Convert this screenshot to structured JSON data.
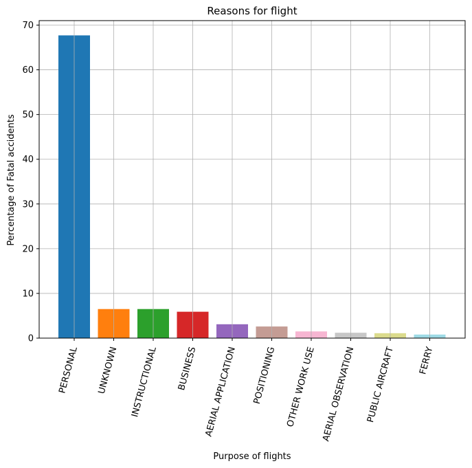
{
  "chart_data": {
    "type": "bar",
    "title": "Reasons for flight",
    "xlabel": "Purpose of flights",
    "ylabel": "Percentage of Fatal accidents",
    "categories": [
      "PERSONAL",
      "UNKNOWN",
      "INSTRUCTIONAL",
      "BUSINESS",
      "AERIAL APPLICATION",
      "POSITIONING",
      "OTHER WORK USE",
      "AERIAL OBSERVATION",
      "PUBLIC AIRCRAFT",
      "FERRY"
    ],
    "values": [
      67.7,
      6.5,
      6.5,
      5.9,
      3.1,
      2.6,
      1.5,
      1.2,
      1.1,
      0.8
    ],
    "colors": [
      "#1f77b4",
      "#ff7f0e",
      "#2ca02c",
      "#d62728",
      "#9467bd",
      "#c49c94",
      "#f7b6d2",
      "#c7c7c7",
      "#dbdb8d",
      "#9edae5"
    ],
    "ylim": [
      0,
      71
    ],
    "yticks": [
      0,
      10,
      20,
      30,
      40,
      50,
      60,
      70
    ],
    "grid": true,
    "xtick_rotation": 75
  }
}
